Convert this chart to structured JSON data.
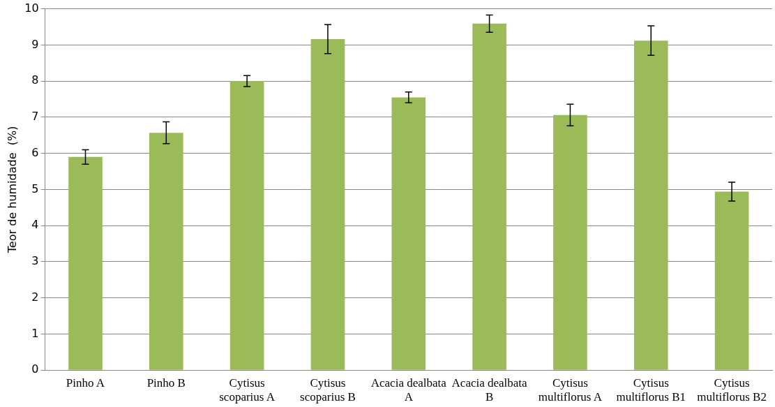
{
  "chart_data": {
    "type": "bar",
    "ylabel": "Teor de humidade  (%)",
    "categories": [
      "Pinho A",
      "Pinho B",
      "Cytisus scoparius A",
      "Cytisus scoparius B",
      "Acacia dealbata A",
      "Acacia dealbata B",
      "Cytisus multiflorus A",
      "Cytisus multiflorus B1",
      "Cytisus multiflorus B2"
    ],
    "values": [
      5.9,
      6.57,
      8.0,
      9.16,
      7.55,
      9.59,
      7.06,
      9.12,
      4.94
    ],
    "errors": [
      0.2,
      0.3,
      0.15,
      0.4,
      0.15,
      0.24,
      0.3,
      0.41,
      0.26
    ],
    "color": "#9bbb59",
    "ylim": [
      0,
      10
    ],
    "yticks": [
      0,
      1,
      2,
      3,
      4,
      5,
      6,
      7,
      8,
      9,
      10
    ],
    "grid": "y",
    "legend": false
  }
}
